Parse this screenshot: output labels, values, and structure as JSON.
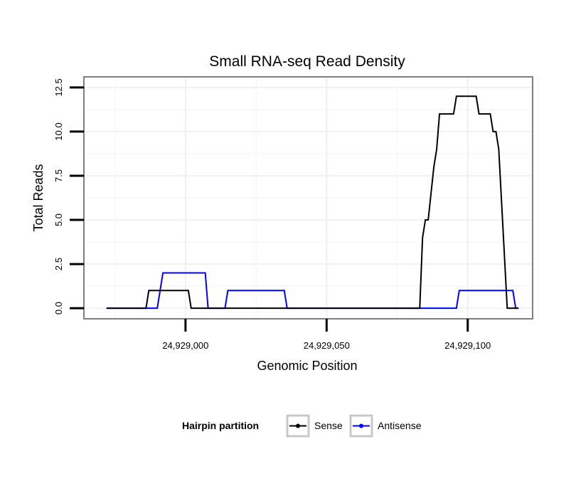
{
  "chart_data": {
    "type": "line",
    "title": "Small RNA-seq Read Density",
    "xlabel": "Genomic Position",
    "ylabel": "Total Reads",
    "xlim": [
      24928964,
      24929123
    ],
    "ylim": [
      -0.6,
      13.1
    ],
    "xticks": [
      24929000,
      24929050,
      24929100
    ],
    "xtick_labels": [
      "24,929,000",
      "24,929,050",
      "24,929,100"
    ],
    "yticks": [
      0,
      2.5,
      5,
      7.5,
      10,
      12.5
    ],
    "ytick_labels": [
      "0.0",
      "2.5",
      "5.0",
      "7.5",
      "10.0",
      "12.5"
    ],
    "grid": true,
    "legend": {
      "title": "Hairpin partition",
      "position": "bottom"
    },
    "series": [
      {
        "name": "Sense",
        "color": "#000000",
        "x": [
          24928972,
          24928986,
          24928987,
          24929001,
          24929002,
          24929013,
          24929014,
          24929083,
          24929084,
          24929085,
          24929086,
          24929088,
          24929089,
          24929090,
          24929092,
          24929095,
          24929096,
          24929097,
          24929098,
          24929100,
          24929103,
          24929104,
          24929107,
          24929108,
          24929109,
          24929110,
          24929111,
          24929114,
          24929115,
          24929118
        ],
        "y": [
          0,
          0,
          1,
          1,
          0,
          0,
          0,
          0,
          4,
          5,
          5,
          8,
          9,
          11,
          11,
          11,
          12,
          12,
          12,
          12,
          12,
          11,
          11,
          11,
          10,
          10,
          9,
          0,
          0,
          0
        ]
      },
      {
        "name": "Antisense",
        "color": "#0000ff",
        "x": [
          24928972,
          24928990,
          24928991,
          24928992,
          24929007,
          24929008,
          24929013,
          24929014,
          24929015,
          24929035,
          24929036,
          24929096,
          24929097,
          24929116,
          24929117,
          24929118
        ],
        "y": [
          0,
          0,
          1,
          2,
          2,
          0,
          0,
          0,
          1,
          1,
          0,
          0,
          1,
          1,
          0,
          0
        ]
      }
    ]
  }
}
